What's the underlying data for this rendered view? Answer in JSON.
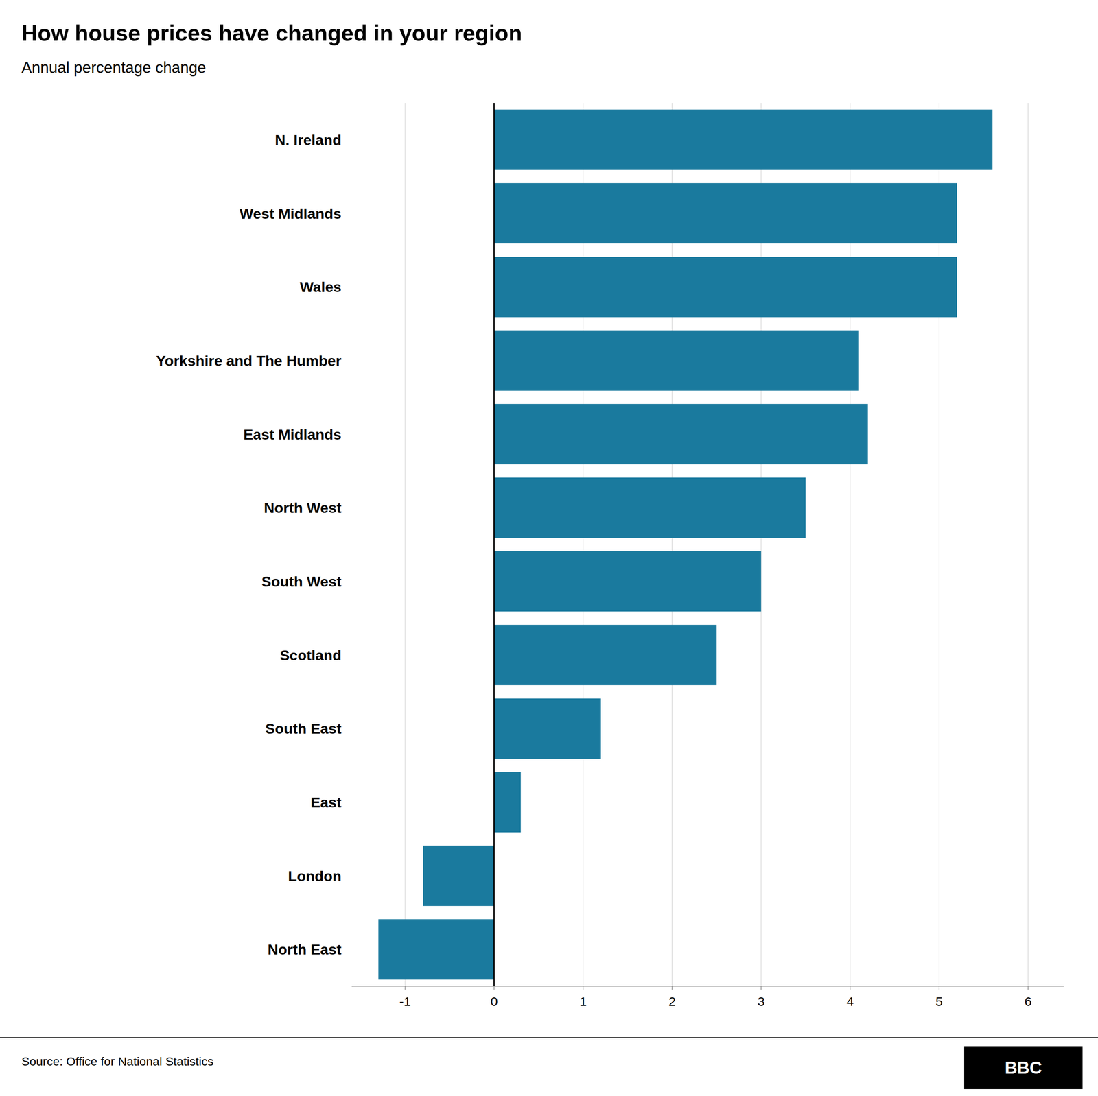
{
  "chart_data": {
    "type": "bar",
    "orientation": "horizontal",
    "title": "How house prices have changed in your region",
    "subtitle": "Annual percentage change",
    "source": "Source: Office for National Statistics",
    "annotations": [
      "BBC"
    ],
    "categories": [
      "N. Ireland",
      "West Midlands",
      "Wales",
      "Yorkshire and The Humber",
      "East Midlands",
      "North West",
      "South West",
      "Scotland",
      "South East",
      "East",
      "London",
      "North East"
    ],
    "values": [
      5.6,
      5.2,
      5.2,
      4.1,
      4.2,
      3.5,
      3.0,
      2.5,
      1.2,
      0.3,
      -0.8,
      -1.3
    ],
    "color": "#1a7a9e",
    "xlim": [
      -1.6,
      6.4
    ],
    "xticks": [
      -1,
      0,
      1,
      2,
      3,
      4,
      5,
      6
    ],
    "grid": true
  }
}
